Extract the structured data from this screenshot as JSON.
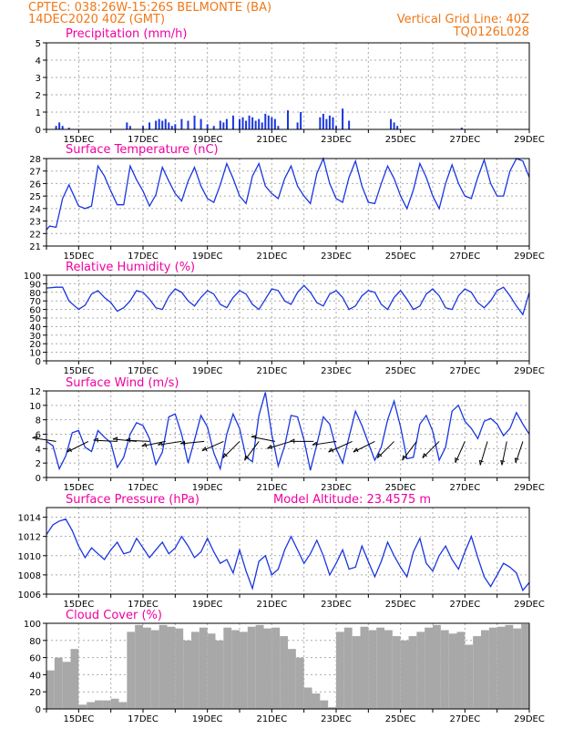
{
  "header": {
    "line1": "CPTEC:  038:26W-15:26S  BELMONTE (BA)",
    "line2": "14DEC2020 40Z (GMT)",
    "right1": "Vertical Grid Line: 40Z",
    "right2": "TQ0126L028"
  },
  "colors": {
    "header": "#f07818",
    "title": "#f000a0",
    "line": "#1a36e0",
    "bar": "#1a36e0",
    "cloud": "#a8a8a8",
    "arrow": "#000000"
  },
  "chart_data": [
    {
      "type": "bar",
      "title": "Precipitation (mm/h)",
      "ylim": [
        0,
        5
      ],
      "yticks": [
        0,
        1,
        2,
        3,
        4,
        5
      ],
      "xlim_days": [
        14,
        29
      ],
      "x_tick_labels": [
        "15DEC",
        "17DEC",
        "19DEC",
        "21DEC",
        "23DEC",
        "25DEC",
        "27DEC",
        "29DEC"
      ],
      "x": [
        14.3,
        14.4,
        14.5,
        14.7,
        16.5,
        16.6,
        17.0,
        17.2,
        17.4,
        17.5,
        17.6,
        17.7,
        17.8,
        17.9,
        18.0,
        18.2,
        18.4,
        18.6,
        18.8,
        19.0,
        19.2,
        19.4,
        19.5,
        19.6,
        19.8,
        20.0,
        20.1,
        20.2,
        20.3,
        20.4,
        20.5,
        20.6,
        20.7,
        20.8,
        20.9,
        21.0,
        21.1,
        21.2,
        21.5,
        21.8,
        21.9,
        22.5,
        22.6,
        22.7,
        22.8,
        22.9,
        23.0,
        23.2,
        23.4,
        24.7,
        24.8,
        24.9,
        26.9
      ],
      "values": [
        0.2,
        0.4,
        0.2,
        0.1,
        0.4,
        0.2,
        0.2,
        0.4,
        0.5,
        0.6,
        0.5,
        0.6,
        0.4,
        0.2,
        0.3,
        0.6,
        0.5,
        0.8,
        0.6,
        0.3,
        0.2,
        0.5,
        0.4,
        0.6,
        0.8,
        0.6,
        0.7,
        0.5,
        0.8,
        0.7,
        0.5,
        0.6,
        0.4,
        0.9,
        0.8,
        0.7,
        0.6,
        0.2,
        1.1,
        0.4,
        1.0,
        0.7,
        0.9,
        0.6,
        0.8,
        0.7,
        0.2,
        1.2,
        0.5,
        0.6,
        0.4,
        0.2,
        0.1
      ]
    },
    {
      "type": "line",
      "title": "Surface Temperature (nC)",
      "ylim": [
        21,
        28
      ],
      "yticks": [
        21,
        22,
        23,
        24,
        25,
        26,
        27,
        28
      ],
      "xlim_days": [
        14,
        29
      ],
      "x_tick_labels": [
        "15DEC",
        "17DEC",
        "19DEC",
        "21DEC",
        "23DEC",
        "25DEC",
        "27DEC",
        "29DEC"
      ],
      "x": [
        14.0,
        14.1,
        14.3,
        14.5,
        14.7,
        15.0,
        15.2,
        15.4,
        15.6,
        15.8,
        16.0,
        16.2,
        16.4,
        16.6,
        16.8,
        17.0,
        17.2,
        17.4,
        17.6,
        17.8,
        18.0,
        18.2,
        18.4,
        18.6,
        18.8,
        19.0,
        19.2,
        19.4,
        19.6,
        19.8,
        20.0,
        20.2,
        20.4,
        20.6,
        20.8,
        21.0,
        21.2,
        21.4,
        21.6,
        21.8,
        22.0,
        22.2,
        22.4,
        22.6,
        22.8,
        23.0,
        23.2,
        23.4,
        23.6,
        23.8,
        24.0,
        24.2,
        24.4,
        24.6,
        24.8,
        25.0,
        25.2,
        25.4,
        25.6,
        25.8,
        26.0,
        26.2,
        26.4,
        26.6,
        26.8,
        27.0,
        27.2,
        27.4,
        27.6,
        27.8,
        28.0,
        28.2,
        28.4,
        28.6,
        28.8,
        29.0
      ],
      "values": [
        22.3,
        22.6,
        22.5,
        24.8,
        25.9,
        24.2,
        24.0,
        24.2,
        27.4,
        26.6,
        25.4,
        24.3,
        24.3,
        27.4,
        26.3,
        25.4,
        24.2,
        25.1,
        27.3,
        26.2,
        25.2,
        24.6,
        26.2,
        27.3,
        25.8,
        24.8,
        24.5,
        25.9,
        27.6,
        26.4,
        25.0,
        24.4,
        26.6,
        27.6,
        25.8,
        25.2,
        24.8,
        26.4,
        27.4,
        25.8,
        25.0,
        24.4,
        26.8,
        28.0,
        26.0,
        24.8,
        24.5,
        26.5,
        27.8,
        25.8,
        24.5,
        24.4,
        26.0,
        27.4,
        26.4,
        25.0,
        24.0,
        25.5,
        27.6,
        26.5,
        25.0,
        24.0,
        26.0,
        27.5,
        26.0,
        25.0,
        24.8,
        26.5,
        27.9,
        26.0,
        25.0,
        25.0,
        27.0,
        28.0,
        27.8,
        26.5
      ]
    },
    {
      "type": "line",
      "title": "Relative Humidity (%)",
      "ylim": [
        0,
        100
      ],
      "yticks": [
        0,
        10,
        20,
        30,
        40,
        50,
        60,
        70,
        80,
        90,
        100
      ],
      "xlim_days": [
        14,
        29
      ],
      "x_tick_labels": [
        "15DEC",
        "17DEC",
        "19DEC",
        "21DEC",
        "23DEC",
        "25DEC",
        "27DEC",
        "29DEC"
      ],
      "x": [
        14.0,
        14.3,
        14.5,
        14.7,
        15.0,
        15.2,
        15.4,
        15.6,
        15.8,
        16.0,
        16.2,
        16.4,
        16.6,
        16.8,
        17.0,
        17.2,
        17.4,
        17.6,
        17.8,
        18.0,
        18.2,
        18.4,
        18.6,
        18.8,
        19.0,
        19.2,
        19.4,
        19.6,
        19.8,
        20.0,
        20.2,
        20.4,
        20.6,
        20.8,
        21.0,
        21.2,
        21.4,
        21.6,
        21.8,
        22.0,
        22.2,
        22.4,
        22.6,
        22.8,
        23.0,
        23.2,
        23.4,
        23.6,
        23.8,
        24.0,
        24.2,
        24.4,
        24.6,
        24.8,
        25.0,
        25.2,
        25.4,
        25.6,
        25.8,
        26.0,
        26.2,
        26.4,
        26.6,
        26.8,
        27.0,
        27.2,
        27.4,
        27.6,
        27.8,
        28.0,
        28.2,
        28.4,
        28.6,
        28.8,
        29.0
      ],
      "values": [
        85,
        86,
        86,
        70,
        60,
        65,
        78,
        82,
        74,
        68,
        58,
        62,
        70,
        82,
        80,
        72,
        62,
        60,
        75,
        84,
        80,
        70,
        64,
        74,
        82,
        78,
        66,
        62,
        74,
        82,
        78,
        66,
        60,
        72,
        84,
        82,
        70,
        66,
        80,
        88,
        80,
        68,
        64,
        78,
        82,
        74,
        60,
        64,
        76,
        82,
        80,
        66,
        60,
        74,
        82,
        72,
        60,
        64,
        78,
        84,
        76,
        62,
        60,
        76,
        84,
        80,
        68,
        62,
        70,
        82,
        86,
        76,
        64,
        54,
        80
      ]
    },
    {
      "type": "line",
      "title": "Surface Wind (m/s)",
      "ylim": [
        0,
        12
      ],
      "yticks": [
        0,
        2,
        4,
        6,
        8,
        10,
        12
      ],
      "xlim_days": [
        14,
        29
      ],
      "x_tick_labels": [
        "15DEC",
        "17DEC",
        "19DEC",
        "21DEC",
        "23DEC",
        "25DEC",
        "27DEC",
        "29DEC"
      ],
      "x": [
        14.0,
        14.2,
        14.4,
        14.6,
        14.8,
        15.0,
        15.2,
        15.4,
        15.6,
        15.8,
        16.0,
        16.2,
        16.4,
        16.6,
        16.8,
        17.0,
        17.2,
        17.4,
        17.6,
        17.8,
        18.0,
        18.2,
        18.4,
        18.6,
        18.8,
        19.0,
        19.2,
        19.4,
        19.6,
        19.8,
        20.0,
        20.2,
        20.4,
        20.6,
        20.8,
        21.0,
        21.2,
        21.4,
        21.6,
        21.8,
        22.0,
        22.2,
        22.4,
        22.6,
        22.8,
        23.0,
        23.2,
        23.4,
        23.6,
        23.8,
        24.0,
        24.2,
        24.4,
        24.6,
        24.8,
        25.0,
        25.2,
        25.4,
        25.6,
        25.8,
        26.0,
        26.2,
        26.4,
        26.6,
        26.8,
        27.0,
        27.2,
        27.4,
        27.6,
        27.8,
        28.0,
        28.2,
        28.4,
        28.6,
        28.8,
        29.0
      ],
      "values": [
        5.0,
        4.4,
        1.2,
        3.0,
        6.2,
        6.5,
        4.2,
        3.6,
        6.5,
        5.6,
        4.8,
        1.4,
        2.8,
        6.0,
        7.6,
        7.2,
        5.4,
        1.8,
        3.5,
        8.4,
        8.8,
        6.0,
        2.0,
        5.2,
        8.6,
        7.0,
        3.4,
        1.2,
        6.0,
        8.8,
        6.8,
        2.8,
        2.2,
        8.6,
        11.8,
        6.0,
        1.6,
        4.4,
        8.6,
        8.4,
        5.2,
        1.0,
        4.6,
        8.4,
        7.4,
        4.0,
        2.0,
        5.6,
        9.2,
        7.2,
        4.8,
        2.4,
        4.2,
        8.0,
        10.6,
        7.0,
        2.6,
        2.8,
        7.4,
        8.6,
        6.4,
        2.4,
        4.2,
        9.2,
        10.0,
        7.8,
        6.8,
        5.4,
        7.8,
        8.2,
        7.4,
        5.8,
        6.8,
        9.0,
        7.4,
        6.0
      ],
      "arrows": [
        {
          "day": 14.3,
          "u": -1,
          "v": 0.15
        },
        {
          "day": 15.3,
          "u": -0.9,
          "v": -0.45
        },
        {
          "day": 16.2,
          "u": -1,
          "v": 0.05
        },
        {
          "day": 16.8,
          "u": -1,
          "v": 0.1
        },
        {
          "day": 17.2,
          "u": -1,
          "v": 0.05
        },
        {
          "day": 17.7,
          "u": -1,
          "v": -0.2
        },
        {
          "day": 18.2,
          "u": -1,
          "v": -0.15
        },
        {
          "day": 18.9,
          "u": -1,
          "v": -0.1
        },
        {
          "day": 19.5,
          "u": -0.9,
          "v": -0.4
        },
        {
          "day": 20.0,
          "u": -0.7,
          "v": -0.7
        },
        {
          "day": 20.6,
          "u": -0.6,
          "v": -0.8
        },
        {
          "day": 21.1,
          "u": -1,
          "v": 0.2
        },
        {
          "day": 21.6,
          "u": -1,
          "v": -0.3
        },
        {
          "day": 22.3,
          "u": -1,
          "v": 0
        },
        {
          "day": 23.0,
          "u": -1,
          "v": -0.15
        },
        {
          "day": 23.5,
          "u": -1,
          "v": -0.45
        },
        {
          "day": 24.2,
          "u": -0.9,
          "v": -0.45
        },
        {
          "day": 24.8,
          "u": -0.7,
          "v": -0.7
        },
        {
          "day": 25.5,
          "u": -0.6,
          "v": -0.8
        },
        {
          "day": 26.2,
          "u": -0.7,
          "v": -0.7
        },
        {
          "day": 27.0,
          "u": -0.4,
          "v": -0.9
        },
        {
          "day": 27.7,
          "u": -0.3,
          "v": -1
        },
        {
          "day": 28.3,
          "u": -0.2,
          "v": -1
        },
        {
          "day": 28.8,
          "u": -0.3,
          "v": -0.9
        }
      ]
    },
    {
      "type": "line",
      "title": "Surface Pressure (hPa)",
      "annotation": "Model Altitude: 23.4575 m",
      "ylim": [
        1006,
        1015
      ],
      "yticks": [
        1006,
        1008,
        1010,
        1012,
        1014
      ],
      "xlim_days": [
        14,
        29
      ],
      "x_tick_labels": [
        "15DEC",
        "17DEC",
        "19DEC",
        "21DEC",
        "23DEC",
        "25DEC",
        "27DEC",
        "29DEC"
      ],
      "x": [
        14.0,
        14.2,
        14.4,
        14.6,
        14.8,
        15.0,
        15.2,
        15.4,
        15.6,
        15.8,
        16.0,
        16.2,
        16.4,
        16.6,
        16.8,
        17.0,
        17.2,
        17.4,
        17.6,
        17.8,
        18.0,
        18.2,
        18.4,
        18.6,
        18.8,
        19.0,
        19.2,
        19.4,
        19.6,
        19.8,
        20.0,
        20.2,
        20.4,
        20.6,
        20.8,
        21.0,
        21.2,
        21.4,
        21.6,
        21.8,
        22.0,
        22.2,
        22.4,
        22.6,
        22.8,
        23.0,
        23.2,
        23.4,
        23.6,
        23.8,
        24.0,
        24.2,
        24.4,
        24.6,
        24.8,
        25.0,
        25.2,
        25.4,
        25.6,
        25.8,
        26.0,
        26.2,
        26.4,
        26.6,
        26.8,
        27.0,
        27.2,
        27.4,
        27.6,
        27.8,
        28.0,
        28.2,
        28.4,
        28.6,
        28.8,
        29.0
      ],
      "values": [
        1012.2,
        1013.2,
        1013.6,
        1013.8,
        1012.6,
        1011.0,
        1009.8,
        1010.8,
        1010.2,
        1009.6,
        1010.6,
        1011.4,
        1010.2,
        1010.4,
        1011.8,
        1010.8,
        1009.8,
        1010.6,
        1011.4,
        1010.2,
        1010.8,
        1012.0,
        1011.0,
        1009.8,
        1010.4,
        1011.8,
        1010.4,
        1009.2,
        1009.6,
        1008.2,
        1010.6,
        1008.4,
        1006.6,
        1009.4,
        1010.0,
        1008.0,
        1008.6,
        1010.6,
        1012.0,
        1010.6,
        1009.2,
        1010.2,
        1011.6,
        1010.0,
        1008.0,
        1009.2,
        1010.6,
        1008.6,
        1008.8,
        1011.0,
        1009.4,
        1007.8,
        1009.4,
        1011.4,
        1010.0,
        1008.8,
        1007.8,
        1010.4,
        1011.8,
        1009.2,
        1008.4,
        1010.0,
        1011.0,
        1009.6,
        1008.6,
        1010.4,
        1012.0,
        1009.8,
        1007.8,
        1006.8,
        1008.0,
        1009.2,
        1008.8,
        1008.2,
        1006.4,
        1007.2
      ]
    },
    {
      "type": "bar",
      "title": "Cloud Cover (%)",
      "ylim": [
        0,
        100
      ],
      "yticks": [
        0,
        20,
        40,
        60,
        80,
        100
      ],
      "xlim_days": [
        14,
        29
      ],
      "x_tick_labels": [
        "15DEC",
        "17DEC",
        "19DEC",
        "21DEC",
        "23DEC",
        "25DEC",
        "27DEC",
        "29DEC"
      ],
      "x": [
        14.0,
        14.25,
        14.5,
        14.75,
        15.0,
        15.25,
        15.5,
        15.75,
        16.0,
        16.25,
        16.5,
        16.75,
        17.0,
        17.25,
        17.5,
        17.75,
        18.0,
        18.25,
        18.5,
        18.75,
        19.0,
        19.25,
        19.5,
        19.75,
        20.0,
        20.25,
        20.5,
        20.75,
        21.0,
        21.25,
        21.5,
        21.75,
        22.0,
        22.25,
        22.5,
        22.75,
        23.0,
        23.25,
        23.5,
        23.75,
        24.0,
        24.25,
        24.5,
        24.75,
        25.0,
        25.25,
        25.5,
        25.75,
        26.0,
        26.25,
        26.5,
        26.75,
        27.0,
        27.25,
        27.5,
        27.75,
        28.0,
        28.25,
        28.5,
        28.75
      ],
      "values": [
        45,
        60,
        55,
        70,
        5,
        8,
        10,
        10,
        12,
        8,
        90,
        98,
        95,
        92,
        98,
        96,
        94,
        80,
        90,
        95,
        88,
        80,
        95,
        92,
        90,
        96,
        98,
        94,
        95,
        85,
        70,
        60,
        25,
        18,
        10,
        2,
        90,
        95,
        85,
        96,
        92,
        95,
        92,
        85,
        80,
        85,
        90,
        95,
        98,
        92,
        88,
        90,
        75,
        85,
        92,
        95,
        96,
        98,
        94,
        99
      ]
    }
  ]
}
